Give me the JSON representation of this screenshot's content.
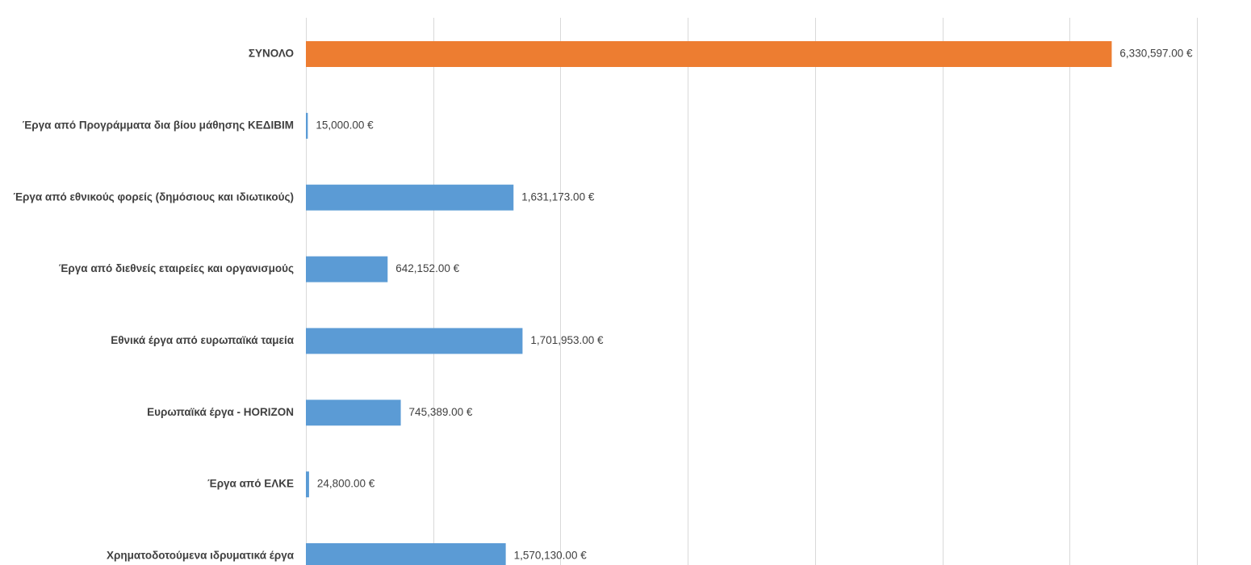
{
  "colors": {
    "highlight": "#ED7D31",
    "default": "#5B9BD5",
    "gridline": "#D9D9D9",
    "text": "#404040"
  },
  "chart_data": {
    "type": "bar",
    "orientation": "horizontal",
    "title": "",
    "xlabel": "",
    "ylabel": "",
    "xlim": [
      0,
      7000000
    ],
    "grid": true,
    "legend": "none",
    "categories": [
      "ΣΥΝΟΛΟ",
      "Έργα από Προγράμματα δια βίου μάθησης ΚΕΔΙΒΙΜ",
      "Έργα από εθνικούς φορείς (δημόσιους και ιδιωτικούς)",
      "Έργα από διεθνείς εταιρείες και οργανισμούς",
      "Εθνικά έργα από ευρωπαϊκά ταμεία",
      "Ευρωπαϊκά έργα - HORIZON",
      "Έργα από ΕΛΚΕ",
      "Χρηματοδοτούμενα ιδρυματικά έργα"
    ],
    "values": [
      6330597,
      15000,
      1631173,
      642152,
      1701953,
      745389,
      24800,
      1570130
    ],
    "value_labels": [
      "6,330,597.00 €",
      "15,000.00 €",
      "1,631,173.00 €",
      "642,152.00 €",
      "1,701,953.00 €",
      "745,389.00 €",
      "24,800.00 €",
      "1,570,130.00 €"
    ],
    "highlighted_category": "ΣΥΝΟΛΟ"
  }
}
